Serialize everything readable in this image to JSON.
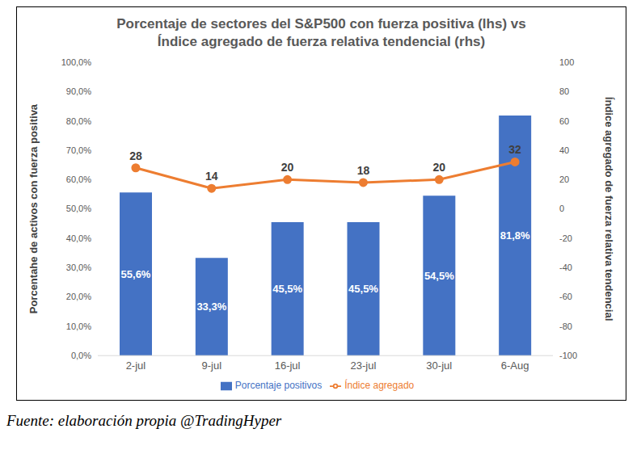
{
  "chart_data": {
    "type": "bar",
    "title": "Porcentaje de sectores del S&P500 con fuerza positiva (lhs) vs Índice agregado de fuerza relativa tendencial (rhs)",
    "subtitle": "Fuente: elaboración propia @TradingHyper",
    "y_label": "Porcentahe de activos con fuerza positiva",
    "y2_label": "Índice agregado de fuerza relativa tendencial",
    "categories": [
      "2-jul",
      "9-jul",
      "16-jul",
      "23-jul",
      "30-jul",
      "6-Aug"
    ],
    "series": [
      {
        "name": "Porcentaje positivos",
        "type": "bar",
        "color": "#4472c4",
        "values": [
          55.6,
          33.3,
          45.5,
          45.5,
          54.5,
          81.8
        ],
        "value_labels": [
          "55,6%",
          "33,3%",
          "45,5%",
          "45,5%",
          "54,5%",
          "81,8%"
        ]
      },
      {
        "name": "Índice agregado",
        "type": "line",
        "axis": "y2",
        "color": "#ed7d31",
        "marker": "circle",
        "values": [
          28,
          14,
          20,
          18,
          20,
          32
        ]
      }
    ],
    "ylim": [
      0,
      100
    ],
    "yticks": [
      {
        "value": 0,
        "label": "0,0%"
      },
      {
        "value": 10,
        "label": "10,0%"
      },
      {
        "value": 20,
        "label": "20,0%"
      },
      {
        "value": 30,
        "label": "30,0%"
      },
      {
        "value": 40,
        "label": "40,0%"
      },
      {
        "value": 50,
        "label": "50,0%"
      },
      {
        "value": 60,
        "label": "60,0%"
      },
      {
        "value": 70,
        "label": "70,0%"
      },
      {
        "value": 80,
        "label": "80,0%"
      },
      {
        "value": 90,
        "label": "90,0%"
      },
      {
        "value": 100,
        "label": "100,0%"
      }
    ],
    "y2lim": [
      -100,
      100
    ],
    "y2ticks": [
      -100,
      -80,
      -60,
      -40,
      -20,
      0,
      20,
      40,
      60,
      80,
      100
    ],
    "data_labels": true,
    "legend": "bottom",
    "grid": false
  }
}
